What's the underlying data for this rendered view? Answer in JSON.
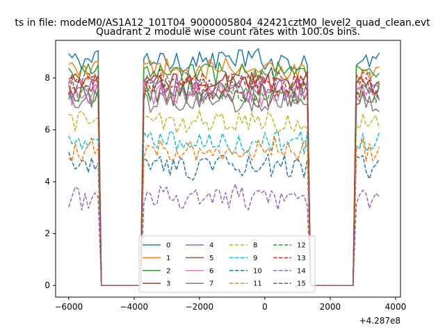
{
  "figure": {
    "suptitle": "ts in file: modeM0/AS1A12_101T04_9000005804_42421cztM0_level2_quad_clean.evt"
  },
  "chart_data": {
    "type": "line",
    "title": "Quadrant 2 module wise count rates with 100.0s bins.",
    "xlabel": "",
    "ylabel": "",
    "x_offset_label": "+4.287e8",
    "xlim": [
      -6400,
      4150
    ],
    "ylim": [
      -0.45,
      9.45
    ],
    "xticks": [
      -6000,
      -4000,
      -2000,
      0,
      2000,
      4000
    ],
    "xtick_labels": [
      "−6000",
      "−4000",
      "−2000",
      "0",
      "2000",
      "4000"
    ],
    "yticks": [
      0,
      2,
      4,
      6,
      8
    ],
    "ytick_labels": [
      "0",
      "2",
      "4",
      "6",
      "8"
    ],
    "grid": false,
    "legend": {
      "placement": "lower center",
      "ncol": 4
    },
    "bin_width_s": 100,
    "data_segments": [
      {
        "start": -6000,
        "end": -5100,
        "label": "on"
      },
      {
        "start": -5000,
        "end": -3800,
        "label": "gap"
      },
      {
        "start": -3700,
        "end": 1300,
        "label": "on"
      },
      {
        "start": 1400,
        "end": 2700,
        "label": "gap"
      },
      {
        "start": 2800,
        "end": 3500,
        "label": "on"
      }
    ],
    "series": [
      {
        "name": "0",
        "color": "#1f77b4",
        "dash": "solid",
        "level": 8.7
      },
      {
        "name": "1",
        "color": "#ff7f0e",
        "dash": "solid",
        "level": 8.3
      },
      {
        "name": "2",
        "color": "#2ca02c",
        "dash": "solid",
        "level": 8.2
      },
      {
        "name": "3",
        "color": "#d62728",
        "dash": "solid",
        "level": 7.8
      },
      {
        "name": "4",
        "color": "#9467bd",
        "dash": "solid",
        "level": 7.6
      },
      {
        "name": "5",
        "color": "#8c564b",
        "dash": "solid",
        "level": 7.3
      },
      {
        "name": "6",
        "color": "#e377c2",
        "dash": "solid",
        "level": 7.4
      },
      {
        "name": "7",
        "color": "#7f7f7f",
        "dash": "solid",
        "level": 7.1
      },
      {
        "name": "8",
        "color": "#bcbd22",
        "dash": "dashed",
        "level": 6.3
      },
      {
        "name": "9",
        "color": "#17becf",
        "dash": "dashed",
        "level": 5.5
      },
      {
        "name": "10",
        "color": "#1f77b4",
        "dash": "dashed",
        "level": 4.6
      },
      {
        "name": "11",
        "color": "#ff7f0e",
        "dash": "dashed",
        "level": 5.2
      },
      {
        "name": "12",
        "color": "#2ca02c",
        "dash": "dashed",
        "level": 7.5
      },
      {
        "name": "13",
        "color": "#d62728",
        "dash": "dashed",
        "level": 7.7
      },
      {
        "name": "14",
        "color": "#9467bd",
        "dash": "dashed",
        "level": 3.4
      },
      {
        "name": "15",
        "color": "#8c564b",
        "dash": "dashed",
        "level": 7.9
      }
    ]
  }
}
